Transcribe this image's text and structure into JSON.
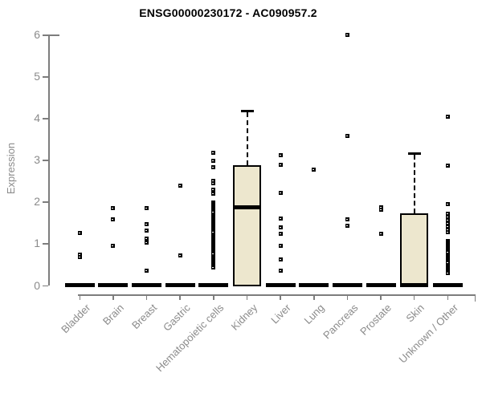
{
  "chart_data": {
    "type": "boxplot",
    "title": "ENSG00000230172 - AC090957.2",
    "ylabel": "Expression",
    "ylim": [
      0,
      6
    ],
    "yticks": [
      0,
      1,
      2,
      3,
      4,
      5,
      6
    ],
    "grid": false,
    "legend": "none",
    "colors": {
      "box_fill": "#EDE7CE",
      "box_border": "#000000",
      "axis": "#7d7d7d",
      "tick_label": "#8b8b8b",
      "title": "#000000"
    },
    "categories": [
      "Bladder",
      "Brain",
      "Breast",
      "Gastric",
      "Hematopoietic cells",
      "Kidney",
      "Liver",
      "Lung",
      "Pancreas",
      "Prostate",
      "Skin",
      "Unknown / Other"
    ],
    "boxes": [
      {
        "category": "Bladder",
        "q1": 0,
        "median": 0,
        "q3": 0,
        "whisker_low": 0,
        "whisker_high": 0,
        "points": [
          1.25,
          0.73,
          0.68
        ]
      },
      {
        "category": "Brain",
        "q1": 0,
        "median": 0,
        "q3": 0,
        "whisker_low": 0,
        "whisker_high": 0,
        "points": [
          1.85,
          1.57,
          0.95
        ]
      },
      {
        "category": "Breast",
        "q1": 0,
        "median": 0,
        "q3": 0,
        "whisker_low": 0,
        "whisker_high": 0,
        "points": [
          1.85,
          1.47,
          1.3,
          1.12,
          1.02,
          0.34
        ]
      },
      {
        "category": "Gastric",
        "q1": 0,
        "median": 0,
        "q3": 0,
        "whisker_low": 0,
        "whisker_high": 0,
        "points": [
          2.38,
          0.71
        ]
      },
      {
        "category": "Hematopoietic cells",
        "q1": 0,
        "median": 0,
        "q3": 0,
        "whisker_low": 0,
        "whisker_high": 0,
        "points": [
          3.17,
          2.97,
          2.83,
          2.5,
          2.45,
          2.28,
          2.19,
          1.98,
          1.94,
          1.9,
          1.86,
          1.82,
          1.78,
          1.74,
          1.7,
          1.66,
          1.62,
          1.58,
          1.54,
          1.5,
          1.46,
          1.42,
          1.38,
          1.34,
          1.3,
          1.26,
          1.22,
          1.18,
          1.14,
          1.1,
          1.06,
          1.02,
          0.98,
          0.94,
          0.9,
          0.86,
          0.82,
          0.78,
          0.74,
          0.7,
          0.66,
          0.62,
          0.58,
          0.54,
          0.5,
          0.46,
          0.42
        ]
      },
      {
        "category": "Kidney",
        "q1": 0,
        "median": 1.87,
        "q3": 2.88,
        "whisker_low": 0,
        "whisker_high": 4.18,
        "points": []
      },
      {
        "category": "Liver",
        "q1": 0,
        "median": 0,
        "q3": 0,
        "whisker_low": 0,
        "whisker_high": 0,
        "points": [
          3.12,
          2.88,
          2.21,
          1.59,
          1.39,
          1.23,
          0.95,
          0.62,
          0.35
        ]
      },
      {
        "category": "Lung",
        "q1": 0,
        "median": 0,
        "q3": 0,
        "whisker_low": 0,
        "whisker_high": 0,
        "points": [
          2.77
        ]
      },
      {
        "category": "Pancreas",
        "q1": 0,
        "median": 0,
        "q3": 0,
        "whisker_low": 0,
        "whisker_high": 0,
        "points": [
          6.0,
          3.58,
          1.57,
          1.42
        ]
      },
      {
        "category": "Prostate",
        "q1": 0,
        "median": 0,
        "q3": 0,
        "whisker_low": 0,
        "whisker_high": 0,
        "points": [
          1.87,
          1.8,
          1.23
        ]
      },
      {
        "category": "Skin",
        "q1": 0,
        "median": 0,
        "q3": 1.72,
        "whisker_low": 0,
        "whisker_high": 3.17,
        "points": []
      },
      {
        "category": "Unknown / Other",
        "q1": 0,
        "median": 0,
        "q3": 0,
        "whisker_low": 0,
        "whisker_high": 0,
        "points": [
          4.04,
          2.86,
          1.95,
          1.72,
          1.64,
          1.56,
          1.48,
          1.4,
          1.32,
          1.26,
          1.06,
          1.02,
          0.98,
          0.94,
          0.9,
          0.86,
          0.82,
          0.78,
          0.73,
          0.69,
          0.65,
          0.61,
          0.57,
          0.53,
          0.49,
          0.45,
          0.41,
          0.37,
          0.33,
          0.28
        ]
      }
    ]
  }
}
